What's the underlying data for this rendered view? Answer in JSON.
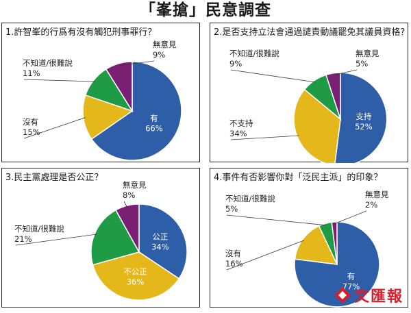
{
  "page": {
    "title": "「峯搶」民意調查"
  },
  "chart_data": [
    {
      "type": "pie",
      "title": "1.許智峯的行爲有沒有觸犯刑事罪行？",
      "slices": [
        {
          "label": "有",
          "value": 66,
          "pct": "66%",
          "color": "#2f5ea8"
        },
        {
          "label": "沒有",
          "value": 15,
          "pct": "15%",
          "color": "#e4b71a"
        },
        {
          "label": "不知道/很難說",
          "value": 11,
          "pct": "11%",
          "color": "#1f9a45"
        },
        {
          "label": "無意見",
          "value": 9,
          "pct": "9%",
          "color": "#7a1f73"
        }
      ]
    },
    {
      "type": "pie",
      "title": "2.是否支持立法會通過譴責動議罷免其議員資格？",
      "slices": [
        {
          "label": "支持",
          "value": 52,
          "pct": "52%",
          "color": "#2f5ea8"
        },
        {
          "label": "不支持",
          "value": 34,
          "pct": "34%",
          "color": "#e4b71a"
        },
        {
          "label": "不知道/很難說",
          "value": 9,
          "pct": "9%",
          "color": "#1f9a45"
        },
        {
          "label": "無意見",
          "value": 5,
          "pct": "5%",
          "color": "#7a1f73"
        }
      ]
    },
    {
      "type": "pie",
      "title": "3.民主黨處理是否公正？",
      "slices": [
        {
          "label": "公正",
          "value": 34,
          "pct": "34%",
          "color": "#2f5ea8"
        },
        {
          "label": "不公正",
          "value": 36,
          "pct": "36%",
          "color": "#e4b71a"
        },
        {
          "label": "不知道/很難說",
          "value": 21,
          "pct": "21%",
          "color": "#1f9a45"
        },
        {
          "label": "無意見",
          "value": 8,
          "pct": "8%",
          "color": "#7a1f73"
        }
      ]
    },
    {
      "type": "pie",
      "title": "4.事件有否影響你對「泛民主派」的印象？",
      "slices": [
        {
          "label": "有",
          "value": 77,
          "pct": "77%",
          "color": "#2f5ea8"
        },
        {
          "label": "沒有",
          "value": 16,
          "pct": "16%",
          "color": "#e4b71a"
        },
        {
          "label": "不知道/很難說",
          "value": 5,
          "pct": "5%",
          "color": "#1f9a45"
        },
        {
          "label": "無意見",
          "value": 2,
          "pct": "2%",
          "color": "#7a1f73"
        }
      ]
    }
  ],
  "watermark": {
    "text": "文匯報"
  }
}
